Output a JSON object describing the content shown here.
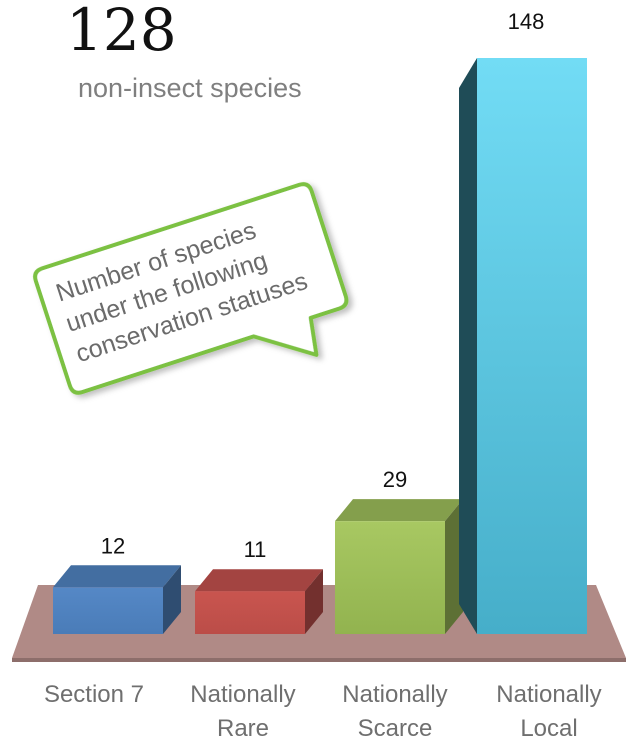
{
  "header": {
    "number": "128",
    "subtitle": "non-insect species"
  },
  "callout": {
    "lines": [
      "Number of species",
      "under the following",
      "conservation statuses"
    ],
    "border_color": "#7cc142"
  },
  "colors": {
    "floor": "#b08a86",
    "section7": "#4f81bd",
    "rare": "#c0504d",
    "scarce": "#9bbb59",
    "local": "#4bacc6"
  },
  "chart_data": {
    "type": "bar",
    "categories": [
      [
        "Section 7"
      ],
      [
        "Nationally",
        "Rare"
      ],
      [
        "Nationally",
        "Scarce"
      ],
      [
        "Nationally",
        "Local"
      ]
    ],
    "values": [
      12,
      11,
      29,
      148
    ],
    "value_labels": [
      "12",
      "11",
      "29",
      "148"
    ],
    "colors": [
      "#4f81bd",
      "#c0504d",
      "#9bbb59",
      "#4bacc6"
    ],
    "ylim": [
      0,
      148
    ],
    "grid": false,
    "legend": "none",
    "title": "",
    "xlabel": "",
    "ylabel": ""
  }
}
